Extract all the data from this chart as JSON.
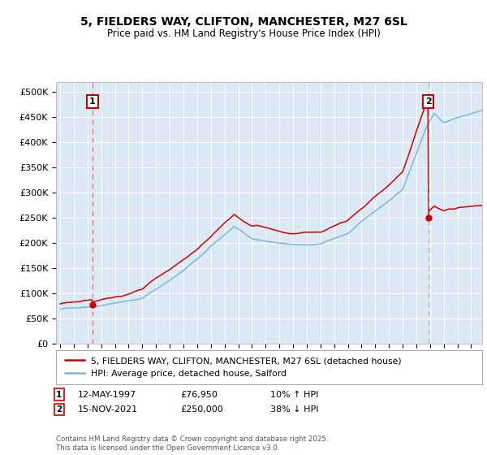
{
  "title_line1": "5, FIELDERS WAY, CLIFTON, MANCHESTER, M27 6SL",
  "title_line2": "Price paid vs. HM Land Registry's House Price Index (HPI)",
  "fig_bg_color": "#ffffff",
  "plot_bg_color": "#dce9f5",
  "hpi_color": "#7bb8d8",
  "price_color": "#cc0000",
  "dashed_line1_color": "#ff6666",
  "dashed_line2_color": "#aaaaaa",
  "sale1_date": "12-MAY-1997",
  "sale1_price": 76950,
  "sale1_label": "£76,950",
  "sale1_hpi_pct": "10% ↑ HPI",
  "sale2_date": "15-NOV-2021",
  "sale2_price": 250000,
  "sale2_label": "£250,000",
  "sale2_hpi_pct": "38% ↓ HPI",
  "footer": "Contains HM Land Registry data © Crown copyright and database right 2025.\nThis data is licensed under the Open Government Licence v3.0.",
  "ylim": [
    0,
    520000
  ],
  "yticks": [
    0,
    50000,
    100000,
    150000,
    200000,
    250000,
    300000,
    350000,
    400000,
    450000,
    500000
  ],
  "ytick_labels": [
    "£0",
    "£50K",
    "£100K",
    "£150K",
    "£200K",
    "£250K",
    "£300K",
    "£350K",
    "£400K",
    "£450K",
    "£500K"
  ],
  "sale1_year": 1997.36,
  "sale2_year": 2021.88,
  "xlim_left": 1994.7,
  "xlim_right": 2025.8
}
